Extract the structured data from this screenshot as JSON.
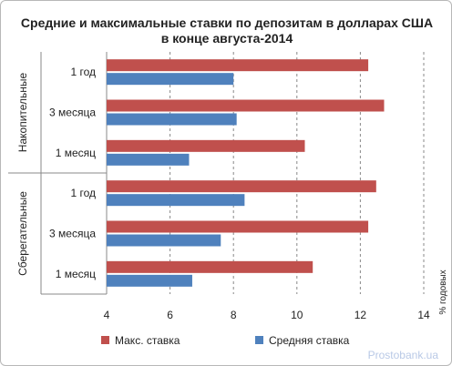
{
  "chart_data": {
    "type": "bar",
    "orientation": "horizontal",
    "title": [
      "Средние и максимальные ставки по депозитам в долларах США",
      "в конце августа-2014"
    ],
    "groups": [
      {
        "name": "Накопительные",
        "categories": [
          "1 год",
          "3 месяца",
          "1 месяц"
        ]
      },
      {
        "name": "Сберегательные",
        "categories": [
          "1 год",
          "3 месяца",
          "1 месяц"
        ]
      }
    ],
    "series": [
      {
        "name": "Макс. ставка",
        "color": "#c0504d",
        "values": [
          12.25,
          12.75,
          10.25,
          12.5,
          12.25,
          10.5
        ]
      },
      {
        "name": "Средняя ставка",
        "color": "#4f81bd",
        "values": [
          8.0,
          8.1,
          6.6,
          8.35,
          7.6,
          6.7
        ]
      }
    ],
    "xlim": [
      4,
      14
    ],
    "xticks": [
      4,
      6,
      8,
      10,
      12,
      14
    ],
    "xlabel": "% годовых",
    "legend": "bottom",
    "grid": "vertical-dashed"
  },
  "watermark": "Prostobank.ua"
}
